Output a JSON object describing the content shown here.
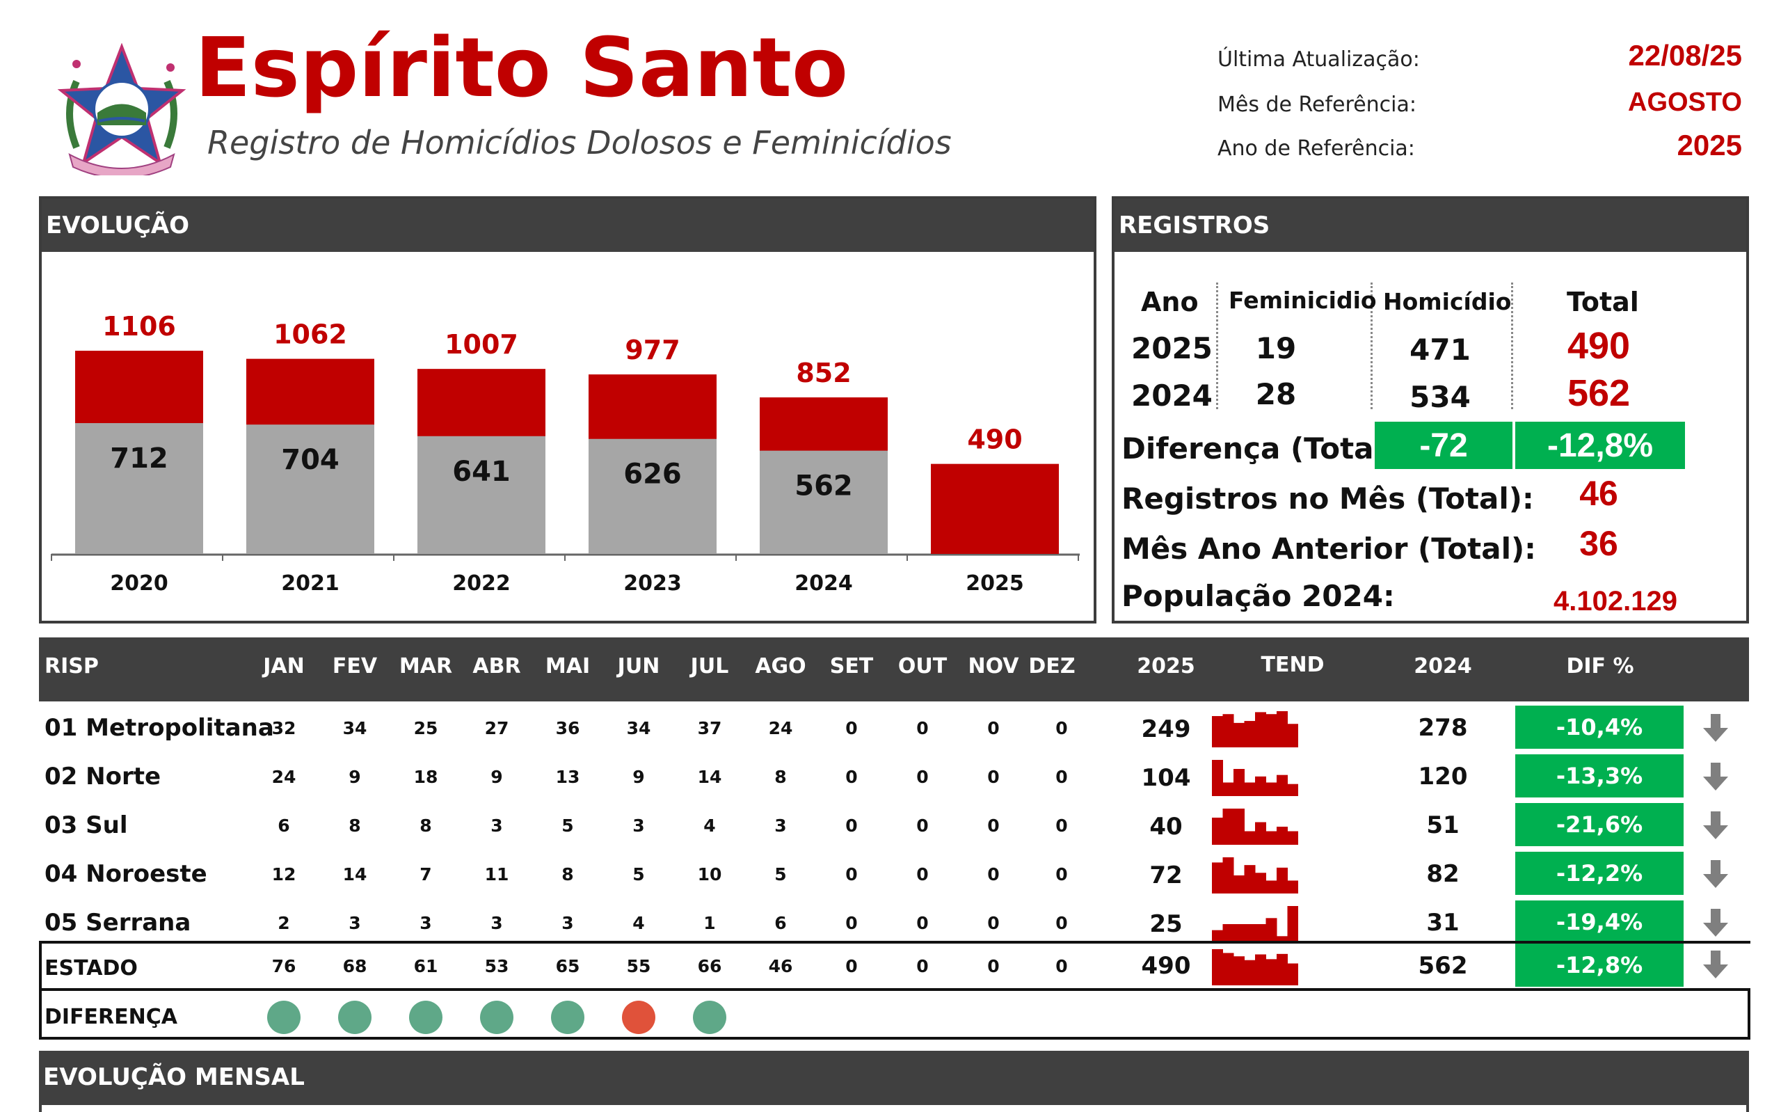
{
  "header": {
    "title": "Espírito Santo",
    "subtitle": "Registro de Homicídios Dolosos e Feminicídios",
    "meta": [
      {
        "label": "Última Atualização:",
        "value": "22/08/25"
      },
      {
        "label": "Mês de Referência:",
        "value": "AGOSTO"
      },
      {
        "label": "Ano de Referência:",
        "value": "2025"
      }
    ]
  },
  "evolucao": {
    "heading": "EVOLUÇÃO",
    "chart_data": {
      "type": "bar",
      "categories": [
        "2020",
        "2021",
        "2022",
        "2023",
        "2024",
        "2025"
      ],
      "totals": [
        1106,
        1062,
        1007,
        977,
        852,
        490
      ],
      "grey_values": [
        712,
        704,
        641,
        626,
        562,
        null
      ],
      "total_labels": [
        "1106",
        "1062",
        "1007",
        "977",
        "852",
        "490"
      ],
      "grey_labels": [
        "712",
        "704",
        "641",
        "626",
        "562",
        ""
      ],
      "colors": {
        "total": "#c00000",
        "grey": "#a6a6a6"
      }
    }
  },
  "registros": {
    "heading": "REGISTROS",
    "col_headers": {
      "ano": "Ano",
      "feminicidio": "Feminicidio",
      "homicidio": "Homicídio",
      "total": "Total"
    },
    "rows": [
      {
        "ano": "2025",
        "feminicidio": "19",
        "homicidio": "471",
        "total": "490"
      },
      {
        "ano": "2024",
        "feminicidio": "28",
        "homicidio": "534",
        "total": "562"
      }
    ],
    "diferenca_label": "Diferença (Total):",
    "diferenca_abs": "-72",
    "diferenca_pct": "-12,8%",
    "mes_label": "Registros no Mês (Total):",
    "mes_value": "46",
    "mes_ant_label": "Mês Ano Anterior (Total):",
    "mes_ant_value": "36",
    "pop_label": "População 2024:",
    "pop_value": "4.102.129"
  },
  "table": {
    "headers": {
      "risp": "RISP",
      "months": [
        "JAN",
        "FEV",
        "MAR",
        "ABR",
        "MAI",
        "JUN",
        "JUL",
        "AGO",
        "SET",
        "OUT",
        "NOV",
        "DEZ"
      ],
      "y2025": "2025",
      "tend": "TEND",
      "y2024": "2024",
      "dif": "DIF %"
    },
    "rows": [
      {
        "name": "01 Metropolitana",
        "months": [
          "32",
          "34",
          "25",
          "27",
          "36",
          "34",
          "37",
          "24",
          "0",
          "0",
          "0",
          "0"
        ],
        "y2025": "249",
        "y2024": "278",
        "dif": "-10,4%",
        "spark": [
          32,
          34,
          25,
          27,
          36,
          34,
          37,
          24
        ]
      },
      {
        "name": "02 Norte",
        "months": [
          "24",
          "9",
          "18",
          "9",
          "13",
          "9",
          "14",
          "8",
          "0",
          "0",
          "0",
          "0"
        ],
        "y2025": "104",
        "y2024": "120",
        "dif": "-13,3%",
        "spark": [
          24,
          9,
          18,
          9,
          13,
          9,
          14,
          8
        ]
      },
      {
        "name": "03 Sul",
        "months": [
          "6",
          "8",
          "8",
          "3",
          "5",
          "3",
          "4",
          "3",
          "0",
          "0",
          "0",
          "0"
        ],
        "y2025": "40",
        "y2024": "51",
        "dif": "-21,6%",
        "spark": [
          6,
          8,
          8,
          3,
          5,
          3,
          4,
          3
        ]
      },
      {
        "name": "04 Noroeste",
        "months": [
          "12",
          "14",
          "7",
          "11",
          "8",
          "5",
          "10",
          "5",
          "0",
          "0",
          "0",
          "0"
        ],
        "y2025": "72",
        "y2024": "82",
        "dif": "-12,2%",
        "spark": [
          12,
          14,
          7,
          11,
          8,
          5,
          10,
          5
        ]
      },
      {
        "name": "05 Serrana",
        "months": [
          "2",
          "3",
          "3",
          "3",
          "3",
          "4",
          "1",
          "6",
          "0",
          "0",
          "0",
          "0"
        ],
        "y2025": "25",
        "y2024": "31",
        "dif": "-19,4%",
        "spark": [
          2,
          3,
          3,
          3,
          3,
          4,
          1,
          6
        ]
      }
    ],
    "estado": {
      "name": "ESTADO",
      "months": [
        "76",
        "68",
        "61",
        "53",
        "65",
        "55",
        "66",
        "46",
        "0",
        "0",
        "0",
        "0"
      ],
      "y2025": "490",
      "y2024": "562",
      "dif": "-12,8%",
      "spark": [
        76,
        68,
        61,
        53,
        65,
        55,
        66,
        46
      ]
    },
    "diferenca": {
      "name": "DIFERENÇA",
      "status": [
        "down",
        "down",
        "down",
        "down",
        "down",
        "up",
        "down"
      ],
      "colors": {
        "down": "#5fa888",
        "up": "#e0523a"
      }
    }
  },
  "mensal": {
    "heading": "EVOLUÇÃO MENSAL"
  }
}
